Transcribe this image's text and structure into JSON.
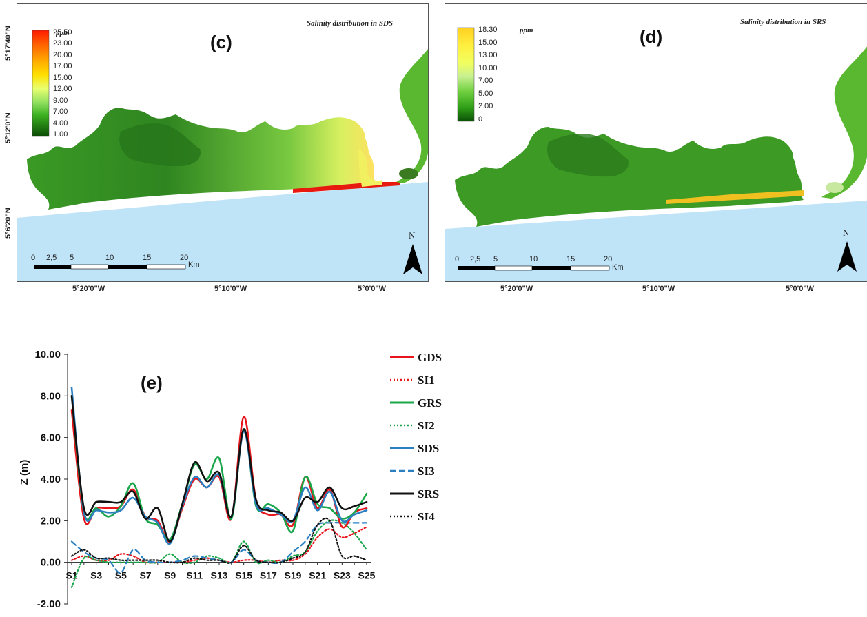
{
  "panel_c": {
    "letter": "(c)",
    "title": "Salinity distribution in SDS",
    "legend_unit": "ppm",
    "legend_labels": [
      "25.50",
      "23.00",
      "20.00",
      "17.00",
      "15.00",
      "12.00",
      "9.00",
      "7.00",
      "4.00",
      "1.00"
    ],
    "legend_colors": [
      "#ff1a00",
      "#ff6a00",
      "#ffb000",
      "#ffe000",
      "#e8ff70",
      "#b8f080",
      "#70d840",
      "#3cb020",
      "#207a10",
      "#0a4a05"
    ],
    "lat_labels": [
      "5°17'40\"N",
      "5°12'0\"N",
      "5°6'20\"N"
    ],
    "lon_labels": [
      "5°20'0\"W",
      "5°10'0\"W",
      "5°0'0\"W"
    ],
    "scale_labels": [
      "0",
      "2,5",
      "5",
      "10",
      "15",
      "20"
    ],
    "scale_unit": "Km",
    "north": "N"
  },
  "panel_d": {
    "letter": "(d)",
    "title": "Salinity distribution in SRS",
    "legend_unit": "ppm",
    "legend_labels": [
      "18.30",
      "15.00",
      "13.00",
      "10.00",
      "7.00",
      "5.00",
      "2.00",
      "0"
    ],
    "legend_colors": [
      "#ffd020",
      "#fff040",
      "#f0ff60",
      "#c8f090",
      "#70d040",
      "#40b020",
      "#208010",
      "#0a5005"
    ],
    "lon_labels": [
      "5°20'0\"W",
      "5°10'0\"W",
      "5°0'0\"W"
    ],
    "scale_labels": [
      "0",
      "2,5",
      "5",
      "10",
      "15",
      "20"
    ],
    "scale_unit": "Km",
    "north": "N"
  },
  "chart_data": {
    "type": "line",
    "letter": "(e)",
    "ylabel": "Z (m)",
    "xlabel": "",
    "ylim": [
      -2,
      10
    ],
    "yticks": [
      "-2.00",
      "0.00",
      "2.00",
      "4.00",
      "6.00",
      "8.00",
      "10.00"
    ],
    "categories": [
      "S1",
      "S2",
      "S3",
      "S4",
      "S5",
      "S6",
      "S7",
      "S8",
      "S9",
      "S10",
      "S11",
      "S12",
      "S13",
      "S14",
      "S15",
      "S16",
      "S17",
      "S18",
      "S19",
      "S20",
      "S21",
      "S22",
      "S23",
      "S24",
      "S25"
    ],
    "xtick_labels": [
      "S1",
      "S3",
      "S5",
      "S7",
      "S9",
      "S11",
      "S13",
      "S15",
      "S17",
      "S19",
      "S21",
      "S23",
      "S25"
    ],
    "legend_position": "right",
    "series": [
      {
        "name": "GDS",
        "color": "#e8141c",
        "dash": "solid",
        "values": [
          7.3,
          2.1,
          2.6,
          2.6,
          2.7,
          3.5,
          2.2,
          2.0,
          1.0,
          2.6,
          4.0,
          3.6,
          4.1,
          2.1,
          7.0,
          3.0,
          2.3,
          2.3,
          1.8,
          4.1,
          2.6,
          3.5,
          1.7,
          2.4,
          2.6
        ]
      },
      {
        "name": "SI1",
        "color": "#e8141c",
        "dash": "dot",
        "values": [
          0.1,
          0.3,
          0.1,
          0.1,
          0.4,
          0.3,
          0.0,
          0.0,
          0.0,
          0.0,
          0.1,
          0.2,
          0.1,
          0.0,
          0.1,
          0.1,
          0.0,
          0.1,
          0.1,
          0.4,
          1.2,
          1.6,
          1.2,
          1.4,
          1.7
        ]
      },
      {
        "name": "GRS",
        "color": "#1aa64a",
        "dash": "solid",
        "values": [
          8.0,
          2.4,
          2.6,
          2.2,
          2.7,
          3.8,
          2.1,
          1.8,
          1.1,
          2.8,
          4.7,
          4.0,
          5.0,
          2.1,
          6.4,
          2.7,
          2.8,
          2.4,
          1.5,
          4.1,
          2.8,
          2.6,
          2.1,
          2.4,
          3.3
        ]
      },
      {
        "name": "SI2",
        "color": "#1aa64a",
        "dash": "dot",
        "values": [
          -1.2,
          0.2,
          0.1,
          0.0,
          0.0,
          0.0,
          0.0,
          0.0,
          0.4,
          0.0,
          0.0,
          0.3,
          0.2,
          0.0,
          1.0,
          0.0,
          0.1,
          0.0,
          0.3,
          0.5,
          1.5,
          2.0,
          1.9,
          1.4,
          0.6
        ]
      },
      {
        "name": "SDS",
        "color": "#2a7fc0",
        "dash": "solid",
        "values": [
          8.4,
          2.4,
          2.5,
          2.4,
          2.5,
          3.1,
          2.2,
          1.9,
          0.9,
          2.7,
          4.1,
          3.6,
          4.2,
          2.2,
          6.3,
          2.8,
          2.6,
          2.3,
          2.0,
          3.6,
          2.5,
          3.4,
          2.0,
          2.3,
          2.5
        ]
      },
      {
        "name": "SI3",
        "color": "#2a7fc0",
        "dash": "dash",
        "values": [
          1.0,
          0.5,
          0.2,
          0.1,
          -0.5,
          0.6,
          0.1,
          0.0,
          0.0,
          0.1,
          0.3,
          0.2,
          0.1,
          0.0,
          0.6,
          0.1,
          0.0,
          0.0,
          0.5,
          1.0,
          1.8,
          1.9,
          1.9,
          1.9,
          1.9
        ]
      },
      {
        "name": "SRS",
        "color": "#111111",
        "dash": "solid",
        "values": [
          8.0,
          2.6,
          2.9,
          2.9,
          2.9,
          3.4,
          2.1,
          2.6,
          1.0,
          2.8,
          4.8,
          3.9,
          4.3,
          2.2,
          6.4,
          3.0,
          2.5,
          2.4,
          2.0,
          3.1,
          2.9,
          3.6,
          2.6,
          2.7,
          2.9
        ]
      },
      {
        "name": "SI4",
        "color": "#111111",
        "dash": "dot",
        "values": [
          0.3,
          0.6,
          0.2,
          0.2,
          0.1,
          0.1,
          0.1,
          0.1,
          0.0,
          0.0,
          0.2,
          0.1,
          0.1,
          0.0,
          0.8,
          0.1,
          0.0,
          0.0,
          0.2,
          0.5,
          1.8,
          2.0,
          0.3,
          0.3,
          0.1
        ]
      }
    ]
  }
}
